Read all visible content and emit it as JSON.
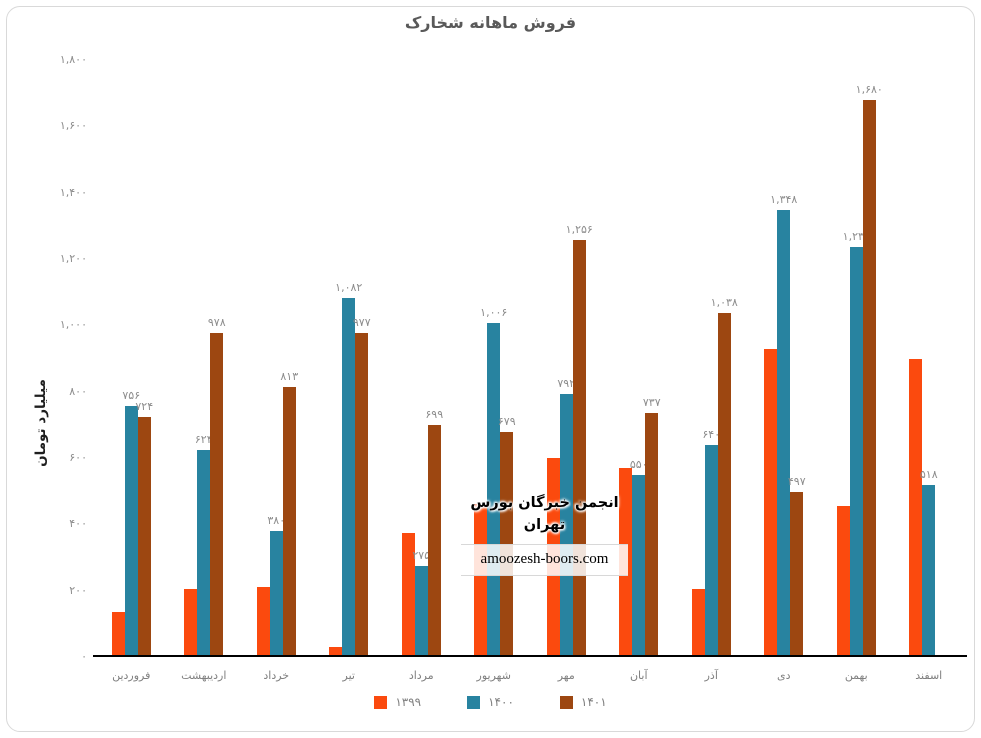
{
  "chart_data": {
    "type": "bar",
    "title": "فروش ماهانه شخارک",
    "ylabel": "میلیارد تومان",
    "xlabel": "",
    "ylim": [
      0,
      1800
    ],
    "grid": false,
    "legend_position": "bottom",
    "categories": [
      "فروردین",
      "اردیبهشت",
      "خرداد",
      "تیر",
      "مرداد",
      "شهریور",
      "مهر",
      "آبان",
      "آذر",
      "دی",
      "بهمن",
      "اسفند"
    ],
    "y_ticks": [
      {
        "value": 0,
        "label": "۰"
      },
      {
        "value": 200,
        "label": "۲۰۰"
      },
      {
        "value": 400,
        "label": "۴۰۰"
      },
      {
        "value": 600,
        "label": "۶۰۰"
      },
      {
        "value": 800,
        "label": "۸۰۰"
      },
      {
        "value": 1000,
        "label": "۱,۰۰۰"
      },
      {
        "value": 1200,
        "label": "۱,۲۰۰"
      },
      {
        "value": 1400,
        "label": "۱,۴۰۰"
      },
      {
        "value": 1600,
        "label": "۱,۶۰۰"
      },
      {
        "value": 1800,
        "label": "۱,۸۰۰"
      }
    ],
    "series": [
      {
        "name": "۱۳۹۹",
        "color": "#fb4a0e",
        "values": [
          135,
          205,
          210,
          30,
          375,
          460,
          600,
          570,
          205,
          930,
          455,
          900
        ],
        "data_labels": [
          "",
          "",
          "",
          "",
          "",
          "",
          "",
          "",
          "",
          "",
          "",
          ""
        ]
      },
      {
        "name": "۱۴۰۰",
        "color": "#2883a0",
        "values": [
          756,
          624,
          380,
          1082,
          275,
          1006,
          792,
          550,
          640,
          1348,
          1235,
          518
        ],
        "data_labels": [
          "۷۵۶",
          "۶۲۴",
          "۳۸۰",
          "۱,۰۸۲",
          "۲۷۵",
          "۱,۰۰۶",
          "۷۹۲",
          "۵۵۰",
          "۶۴۰",
          "۱,۳۴۸",
          "۱,۲۳۵",
          "۵۱۸"
        ]
      },
      {
        "name": "۱۴۰۱",
        "color": "#9d4711",
        "values": [
          724,
          978,
          813,
          977,
          699,
          679,
          1256,
          737,
          1038,
          497,
          1680,
          null
        ],
        "data_labels": [
          "۷۲۴",
          "۹۷۸",
          "۸۱۳",
          "۹۷۷",
          "۶۹۹",
          "۶۷۹",
          "۱,۲۵۶",
          "۷۳۷",
          "۱,۰۳۸",
          "۴۹۷",
          "۱,۶۸۰",
          ""
        ]
      }
    ]
  },
  "watermark": {
    "line1": "انجمن خبرگان بورس تهران",
    "line2": "amoozesh-boors.com"
  }
}
